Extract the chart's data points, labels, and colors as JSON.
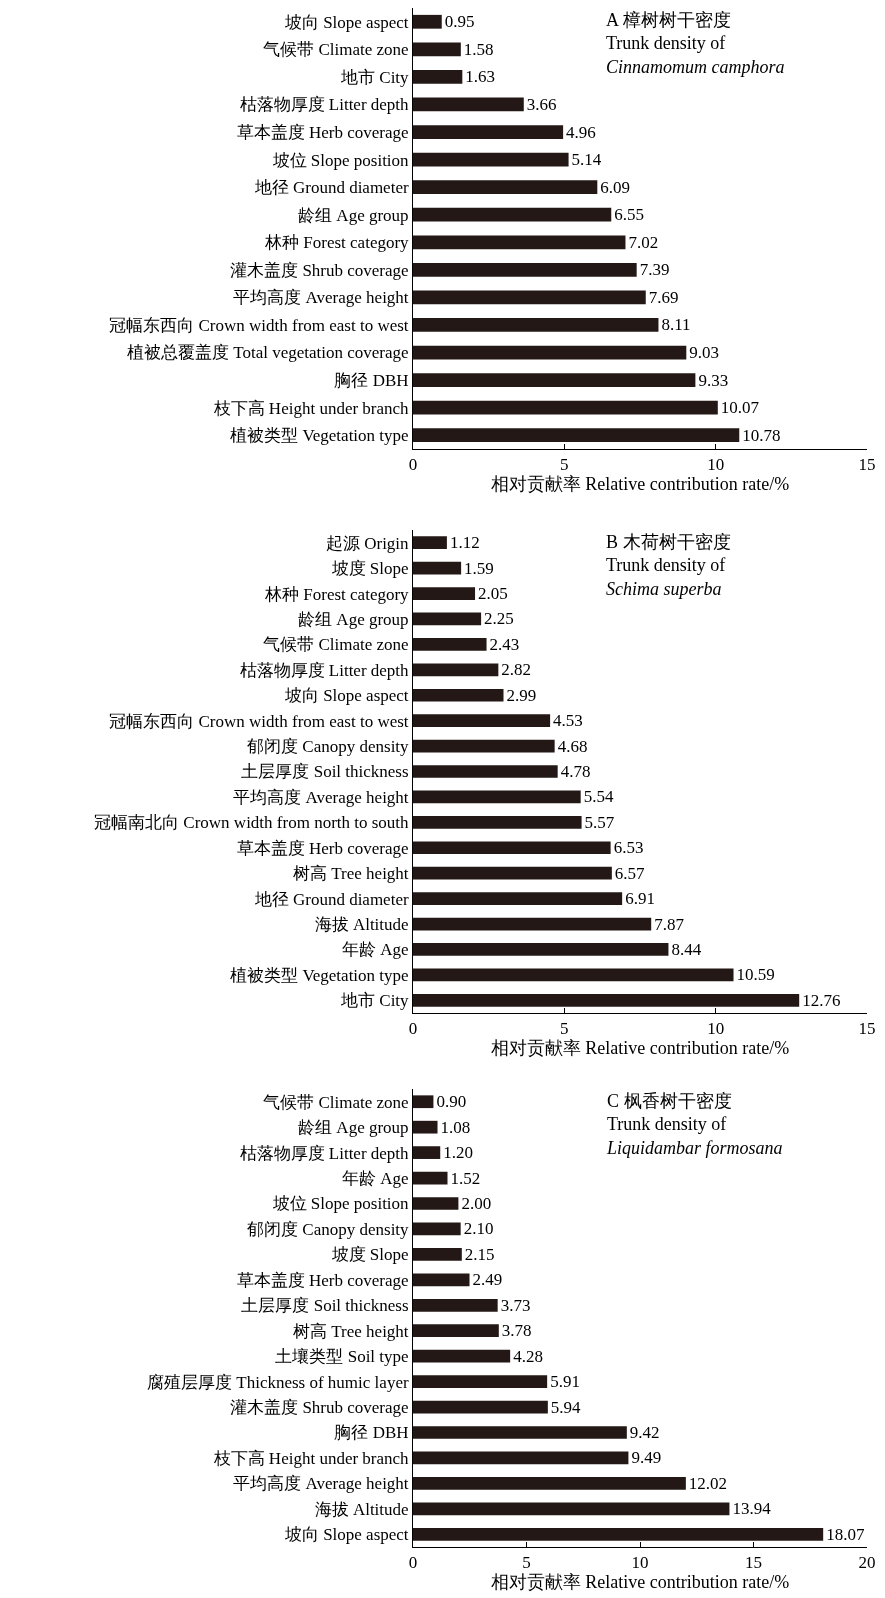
{
  "chart_data": [
    {
      "type": "bar",
      "orientation": "horizontal",
      "title": "A 樟树树干密度\nTrunk density of\nCinnamomum camphora",
      "xlabel": "相对贡献率 Relative contribution rate/%",
      "categories": [
        "坡向 Slope aspect",
        "气候带 Climate zone",
        "地市 City",
        "枯落物厚度 Litter depth",
        "草本盖度 Herb coverage",
        "坡位 Slope position",
        "地径 Ground diameter",
        "龄组 Age group",
        "林种 Forest category",
        "灌木盖度 Shrub coverage",
        "平均高度 Average height",
        "冠幅东西向 Crown width from east to west",
        "植被总覆盖度 Total vegetation coverage",
        "胸径 DBH",
        "枝下高 Height under branch",
        "植被类型 Vegetation type"
      ],
      "values": [
        0.95,
        1.58,
        1.63,
        3.66,
        4.96,
        5.14,
        6.09,
        6.55,
        7.02,
        7.39,
        7.69,
        8.11,
        9.03,
        9.33,
        10.07,
        10.78
      ],
      "value_labels": [
        "0.95",
        "1.58",
        "1.63",
        "3.66",
        "4.96",
        "5.14",
        "6.09",
        "6.55",
        "7.02",
        "7.39",
        "7.69",
        "8.11",
        "9.03",
        "9.33",
        "10.07",
        "10.78"
      ],
      "color": "#231815",
      "xlim": [
        0,
        15
      ],
      "xticks": [
        0,
        5,
        10,
        15
      ]
    },
    {
      "type": "bar",
      "orientation": "horizontal",
      "title": "B 木荷树干密度\nTrunk density of\nSchima superba",
      "xlabel": "相对贡献率 Relative contribution rate/%",
      "categories": [
        "起源 Origin",
        "坡度 Slope",
        "林种 Forest category",
        "龄组 Age group",
        "气候带 Climate zone",
        "枯落物厚度 Litter depth",
        "坡向 Slope aspect",
        "冠幅东西向 Crown width from east to west",
        "郁闭度 Canopy density",
        "土层厚度 Soil thickness",
        "平均高度 Average height",
        "冠幅南北向 Crown width from north to south",
        "草本盖度 Herb coverage",
        "树高 Tree height",
        "地径 Ground diameter",
        "海拔 Altitude",
        "年龄 Age",
        "植被类型 Vegetation type",
        "地市 City"
      ],
      "values": [
        1.12,
        1.59,
        2.05,
        2.25,
        2.43,
        2.82,
        2.99,
        4.53,
        4.68,
        4.78,
        5.54,
        5.57,
        6.53,
        6.57,
        6.91,
        7.87,
        8.44,
        10.59,
        12.76
      ],
      "value_labels": [
        "1.12",
        "1.59",
        "2.05",
        "2.25",
        "2.43",
        "2.82",
        "2.99",
        "4.53",
        "4.68",
        "4.78",
        "5.54",
        "5.57",
        "6.53",
        "6.57",
        "6.91",
        "7.87",
        "8.44",
        "10.59",
        "12.76"
      ],
      "color": "#231815",
      "xlim": [
        0,
        15
      ],
      "xticks": [
        0,
        5,
        10,
        15
      ]
    },
    {
      "type": "bar",
      "orientation": "horizontal",
      "title": "C 枫香树干密度\nTrunk density of\nLiquidambar formosana",
      "xlabel": "相对贡献率 Relative contribution rate/%",
      "categories": [
        "气候带 Climate zone",
        "龄组 Age group",
        "枯落物厚度 Litter depth",
        "年龄 Age",
        "坡位 Slope position",
        "郁闭度 Canopy density",
        "坡度 Slope",
        "草本盖度 Herb coverage",
        "土层厚度 Soil thickness",
        "树高 Tree height",
        "土壤类型 Soil type",
        "腐殖层厚度 Thickness of humic layer",
        "灌木盖度 Shrub coverage",
        "胸径 DBH",
        "枝下高 Height under branch",
        "平均高度 Average height",
        "海拔 Altitude",
        "坡向 Slope aspect"
      ],
      "values": [
        0.9,
        1.08,
        1.2,
        1.52,
        2.0,
        2.1,
        2.15,
        2.49,
        3.73,
        3.78,
        4.28,
        5.91,
        5.94,
        9.42,
        9.49,
        12.02,
        13.94,
        18.07
      ],
      "value_labels": [
        "0.90",
        "1.08",
        "1.20",
        "1.52",
        "2.00",
        "2.10",
        "2.15",
        "2.49",
        "3.73",
        "3.78",
        "4.28",
        "5.91",
        "5.94",
        "9.42",
        "9.49",
        "12.02",
        "13.94",
        "18.07"
      ],
      "color": "#231815",
      "xlim": [
        0,
        20
      ],
      "xticks": [
        0,
        5,
        10,
        15,
        20
      ]
    }
  ]
}
